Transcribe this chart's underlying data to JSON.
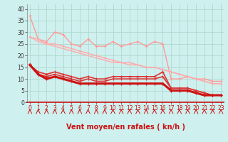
{
  "xlabel": "Vent moyen/en rafales ( kn/h )",
  "background_color": "#cef0ee",
  "grid_color": "#b0d8d0",
  "x": [
    0,
    1,
    2,
    3,
    4,
    5,
    6,
    7,
    8,
    9,
    10,
    11,
    12,
    13,
    14,
    15,
    16,
    17,
    18,
    19,
    20,
    21,
    22,
    23
  ],
  "line1_y": [
    37,
    27,
    26,
    30,
    29,
    25,
    24,
    27,
    24,
    24,
    26,
    24,
    25,
    26,
    24,
    26,
    25,
    10,
    10,
    11,
    10,
    10,
    9,
    9
  ],
  "line2_y": [
    28,
    27,
    25,
    25,
    24,
    23,
    22,
    21,
    20,
    19,
    18,
    17,
    17,
    16,
    15,
    15,
    14,
    13,
    12,
    11,
    10,
    9,
    8,
    8
  ],
  "line3_y": [
    28,
    26,
    25,
    24,
    23,
    22,
    21,
    20,
    19,
    18,
    17,
    17,
    16,
    16,
    15,
    15,
    14,
    13,
    12,
    11,
    10,
    9,
    8,
    8
  ],
  "line4_y": [
    16,
    13,
    12,
    13,
    12,
    11,
    10,
    11,
    10,
    10,
    11,
    11,
    11,
    11,
    11,
    11,
    13,
    6,
    6,
    6,
    5,
    4,
    3,
    3
  ],
  "line5_y": [
    16,
    12,
    11,
    12,
    11,
    10,
    9,
    10,
    9,
    9,
    10,
    10,
    10,
    10,
    10,
    10,
    11,
    6,
    6,
    6,
    5,
    4,
    3,
    3
  ],
  "line6_y": [
    16,
    12,
    10,
    11,
    10,
    9,
    8,
    8,
    8,
    8,
    8,
    8,
    8,
    8,
    8,
    8,
    8,
    5,
    5,
    5,
    4,
    3,
    3,
    3
  ],
  "line1_color": "#ff9999",
  "line2_color": "#ffaaaa",
  "line3_color": "#ffaaaa",
  "line4_color": "#dd3333",
  "line5_color": "#dd3333",
  "line6_color": "#cc1111",
  "line1_lw": 1.0,
  "line2_lw": 1.0,
  "line3_lw": 1.0,
  "line4_lw": 1.2,
  "line5_lw": 1.2,
  "line6_lw": 2.2,
  "ylim": [
    0,
    42
  ],
  "xlim": [
    -0.3,
    23.3
  ],
  "yticks": [
    0,
    5,
    10,
    15,
    20,
    25,
    30,
    35,
    40
  ],
  "xticks": [
    0,
    1,
    2,
    3,
    4,
    5,
    6,
    7,
    8,
    9,
    10,
    11,
    12,
    13,
    14,
    15,
    16,
    17,
    18,
    19,
    20,
    21,
    22,
    23
  ],
  "tick_fontsize": 5.5,
  "xlabel_fontsize": 7,
  "marker": "+",
  "marker_size": 3,
  "marker_size_small": 2.5
}
